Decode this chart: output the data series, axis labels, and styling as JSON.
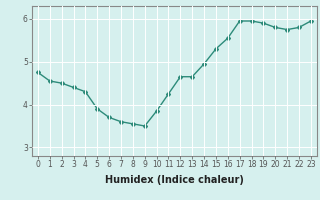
{
  "x": [
    0,
    1,
    2,
    3,
    4,
    5,
    6,
    7,
    8,
    9,
    10,
    11,
    12,
    13,
    14,
    15,
    16,
    17,
    18,
    19,
    20,
    21,
    22,
    23
  ],
  "y": [
    4.75,
    4.55,
    4.5,
    4.4,
    4.3,
    3.9,
    3.7,
    3.6,
    3.55,
    3.5,
    3.85,
    4.25,
    4.65,
    4.65,
    4.95,
    5.3,
    5.55,
    5.95,
    5.95,
    5.9,
    5.8,
    5.75,
    5.8,
    5.95
  ],
  "xlabel": "Humidex (Indice chaleur)",
  "ylim": [
    2.8,
    6.3
  ],
  "xlim": [
    -0.5,
    23.5
  ],
  "yticks": [
    3,
    4,
    5,
    6
  ],
  "xticks": [
    0,
    1,
    2,
    3,
    4,
    5,
    6,
    7,
    8,
    9,
    10,
    11,
    12,
    13,
    14,
    15,
    16,
    17,
    18,
    19,
    20,
    21,
    22,
    23
  ],
  "line_color": "#2d8b7a",
  "marker": "D",
  "markersize": 2.0,
  "linewidth": 1.0,
  "bg_color": "#d6f0ee",
  "grid_color": "#ffffff",
  "axis_color": "#555555",
  "tick_fontsize": 5.5,
  "label_fontsize": 7.0
}
